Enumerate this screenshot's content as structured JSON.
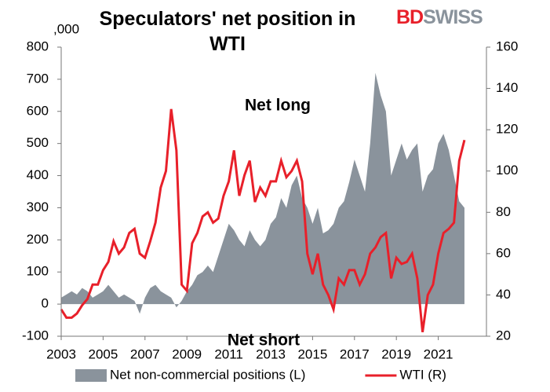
{
  "logo": {
    "first": "BD",
    "second": "SWISS"
  },
  "chart_data": {
    "type": "area-line",
    "title": "Speculators' net position in WTI",
    "unit_label": ",000",
    "annotations": [
      "Net long",
      "Net short"
    ],
    "x": [
      2003,
      2003.25,
      2003.5,
      2003.75,
      2004,
      2004.25,
      2004.5,
      2004.75,
      2005,
      2005.25,
      2005.5,
      2005.75,
      2006,
      2006.25,
      2006.5,
      2006.75,
      2007,
      2007.25,
      2007.5,
      2007.75,
      2008,
      2008.25,
      2008.5,
      2008.75,
      2009,
      2009.25,
      2009.5,
      2009.75,
      2010,
      2010.25,
      2010.5,
      2010.75,
      2011,
      2011.25,
      2011.5,
      2011.75,
      2012,
      2012.25,
      2012.5,
      2012.75,
      2013,
      2013.25,
      2013.5,
      2013.75,
      2014,
      2014.25,
      2014.5,
      2014.75,
      2015,
      2015.25,
      2015.5,
      2015.75,
      2016,
      2016.25,
      2016.5,
      2016.75,
      2017,
      2017.25,
      2017.5,
      2017.75,
      2018,
      2018.25,
      2018.5,
      2018.75,
      2019,
      2019.25,
      2019.5,
      2019.75,
      2020,
      2020.25,
      2020.5,
      2020.75,
      2021,
      2021.25,
      2021.5,
      2021.75,
      2022,
      2022.25
    ],
    "series": [
      {
        "name": "Net non-commercial positions (L)",
        "color": "#8a939c",
        "kind": "area",
        "axis": "y",
        "values": [
          20,
          30,
          40,
          30,
          50,
          40,
          20,
          30,
          40,
          60,
          40,
          20,
          30,
          20,
          10,
          -30,
          20,
          50,
          60,
          40,
          30,
          20,
          -10,
          10,
          40,
          60,
          90,
          100,
          120,
          100,
          150,
          200,
          250,
          230,
          200,
          180,
          230,
          200,
          180,
          200,
          250,
          270,
          330,
          300,
          370,
          400,
          330,
          300,
          250,
          300,
          220,
          230,
          250,
          300,
          320,
          380,
          450,
          400,
          350,
          500,
          720,
          650,
          600,
          400,
          450,
          500,
          450,
          480,
          500,
          350,
          400,
          420,
          500,
          530,
          480,
          400,
          320,
          300
        ]
      },
      {
        "name": "WTI (R)",
        "color": "#e8202a",
        "kind": "line",
        "axis": "y2",
        "values": [
          33,
          29,
          29,
          31,
          35,
          38,
          45,
          45,
          52,
          56,
          66,
          60,
          63,
          70,
          72,
          60,
          58,
          66,
          75,
          92,
          100,
          130,
          110,
          45,
          42,
          65,
          70,
          78,
          80,
          75,
          77,
          88,
          95,
          110,
          88,
          98,
          105,
          85,
          92,
          88,
          95,
          95,
          105,
          97,
          100,
          105,
          95,
          60,
          50,
          60,
          45,
          40,
          33,
          48,
          45,
          52,
          52,
          45,
          50,
          60,
          63,
          68,
          70,
          48,
          58,
          55,
          56,
          60,
          48,
          22,
          40,
          45,
          60,
          70,
          72,
          75,
          105,
          115
        ]
      }
    ],
    "xlim": [
      2003,
      2023.3
    ],
    "xticks": [
      2003,
      2005,
      2007,
      2009,
      2011,
      2013,
      2015,
      2017,
      2019,
      2021
    ],
    "ylim": [
      -100,
      800
    ],
    "yticks": [
      -100,
      0,
      100,
      200,
      300,
      400,
      500,
      600,
      700,
      800
    ],
    "y2lim": [
      20,
      160
    ],
    "y2ticks": [
      20,
      40,
      60,
      80,
      100,
      120,
      140,
      160
    ],
    "legend": "bottom"
  }
}
